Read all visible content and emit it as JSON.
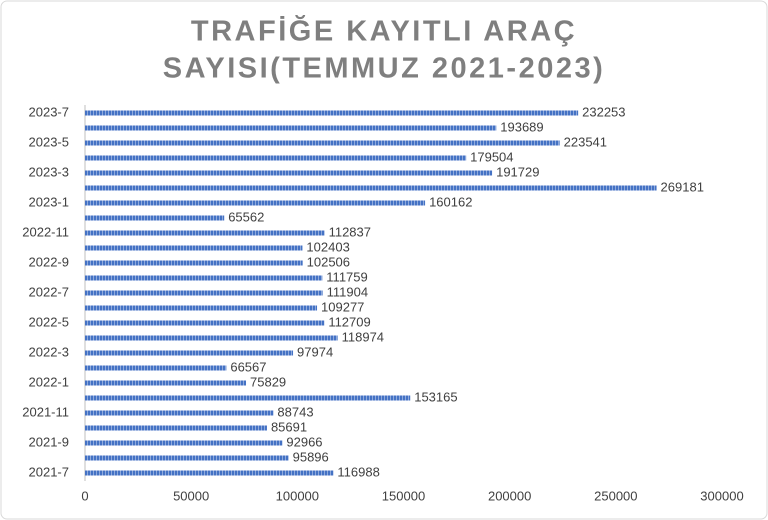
{
  "chart_data": {
    "type": "hbar",
    "title": [
      "TRAFİĞE KAYITLI ARAÇ",
      "SAYISI(TEMMUZ 2021-2023)"
    ],
    "categories": [
      "2021-7",
      null,
      "2021-9",
      null,
      "2021-11",
      null,
      "2022-1",
      null,
      "2022-3",
      null,
      "2022-5",
      null,
      "2022-7",
      null,
      "2022-9",
      null,
      "2022-11",
      null,
      "2023-1",
      null,
      "2023-3",
      null,
      "2023-5",
      null,
      "2023-7"
    ],
    "values": [
      116988,
      95896,
      92966,
      85691,
      88743,
      153165,
      75829,
      66567,
      97974,
      118974,
      112709,
      109277,
      111904,
      111759,
      102506,
      102403,
      112837,
      65562,
      160162,
      269181,
      191729,
      179504,
      223541,
      193689,
      232253
    ],
    "color": "#4472c4",
    "xlim": [
      0,
      300000
    ],
    "xticks": [
      0,
      50000,
      100000,
      150000,
      200000,
      250000,
      300000
    ],
    "grid": false
  }
}
